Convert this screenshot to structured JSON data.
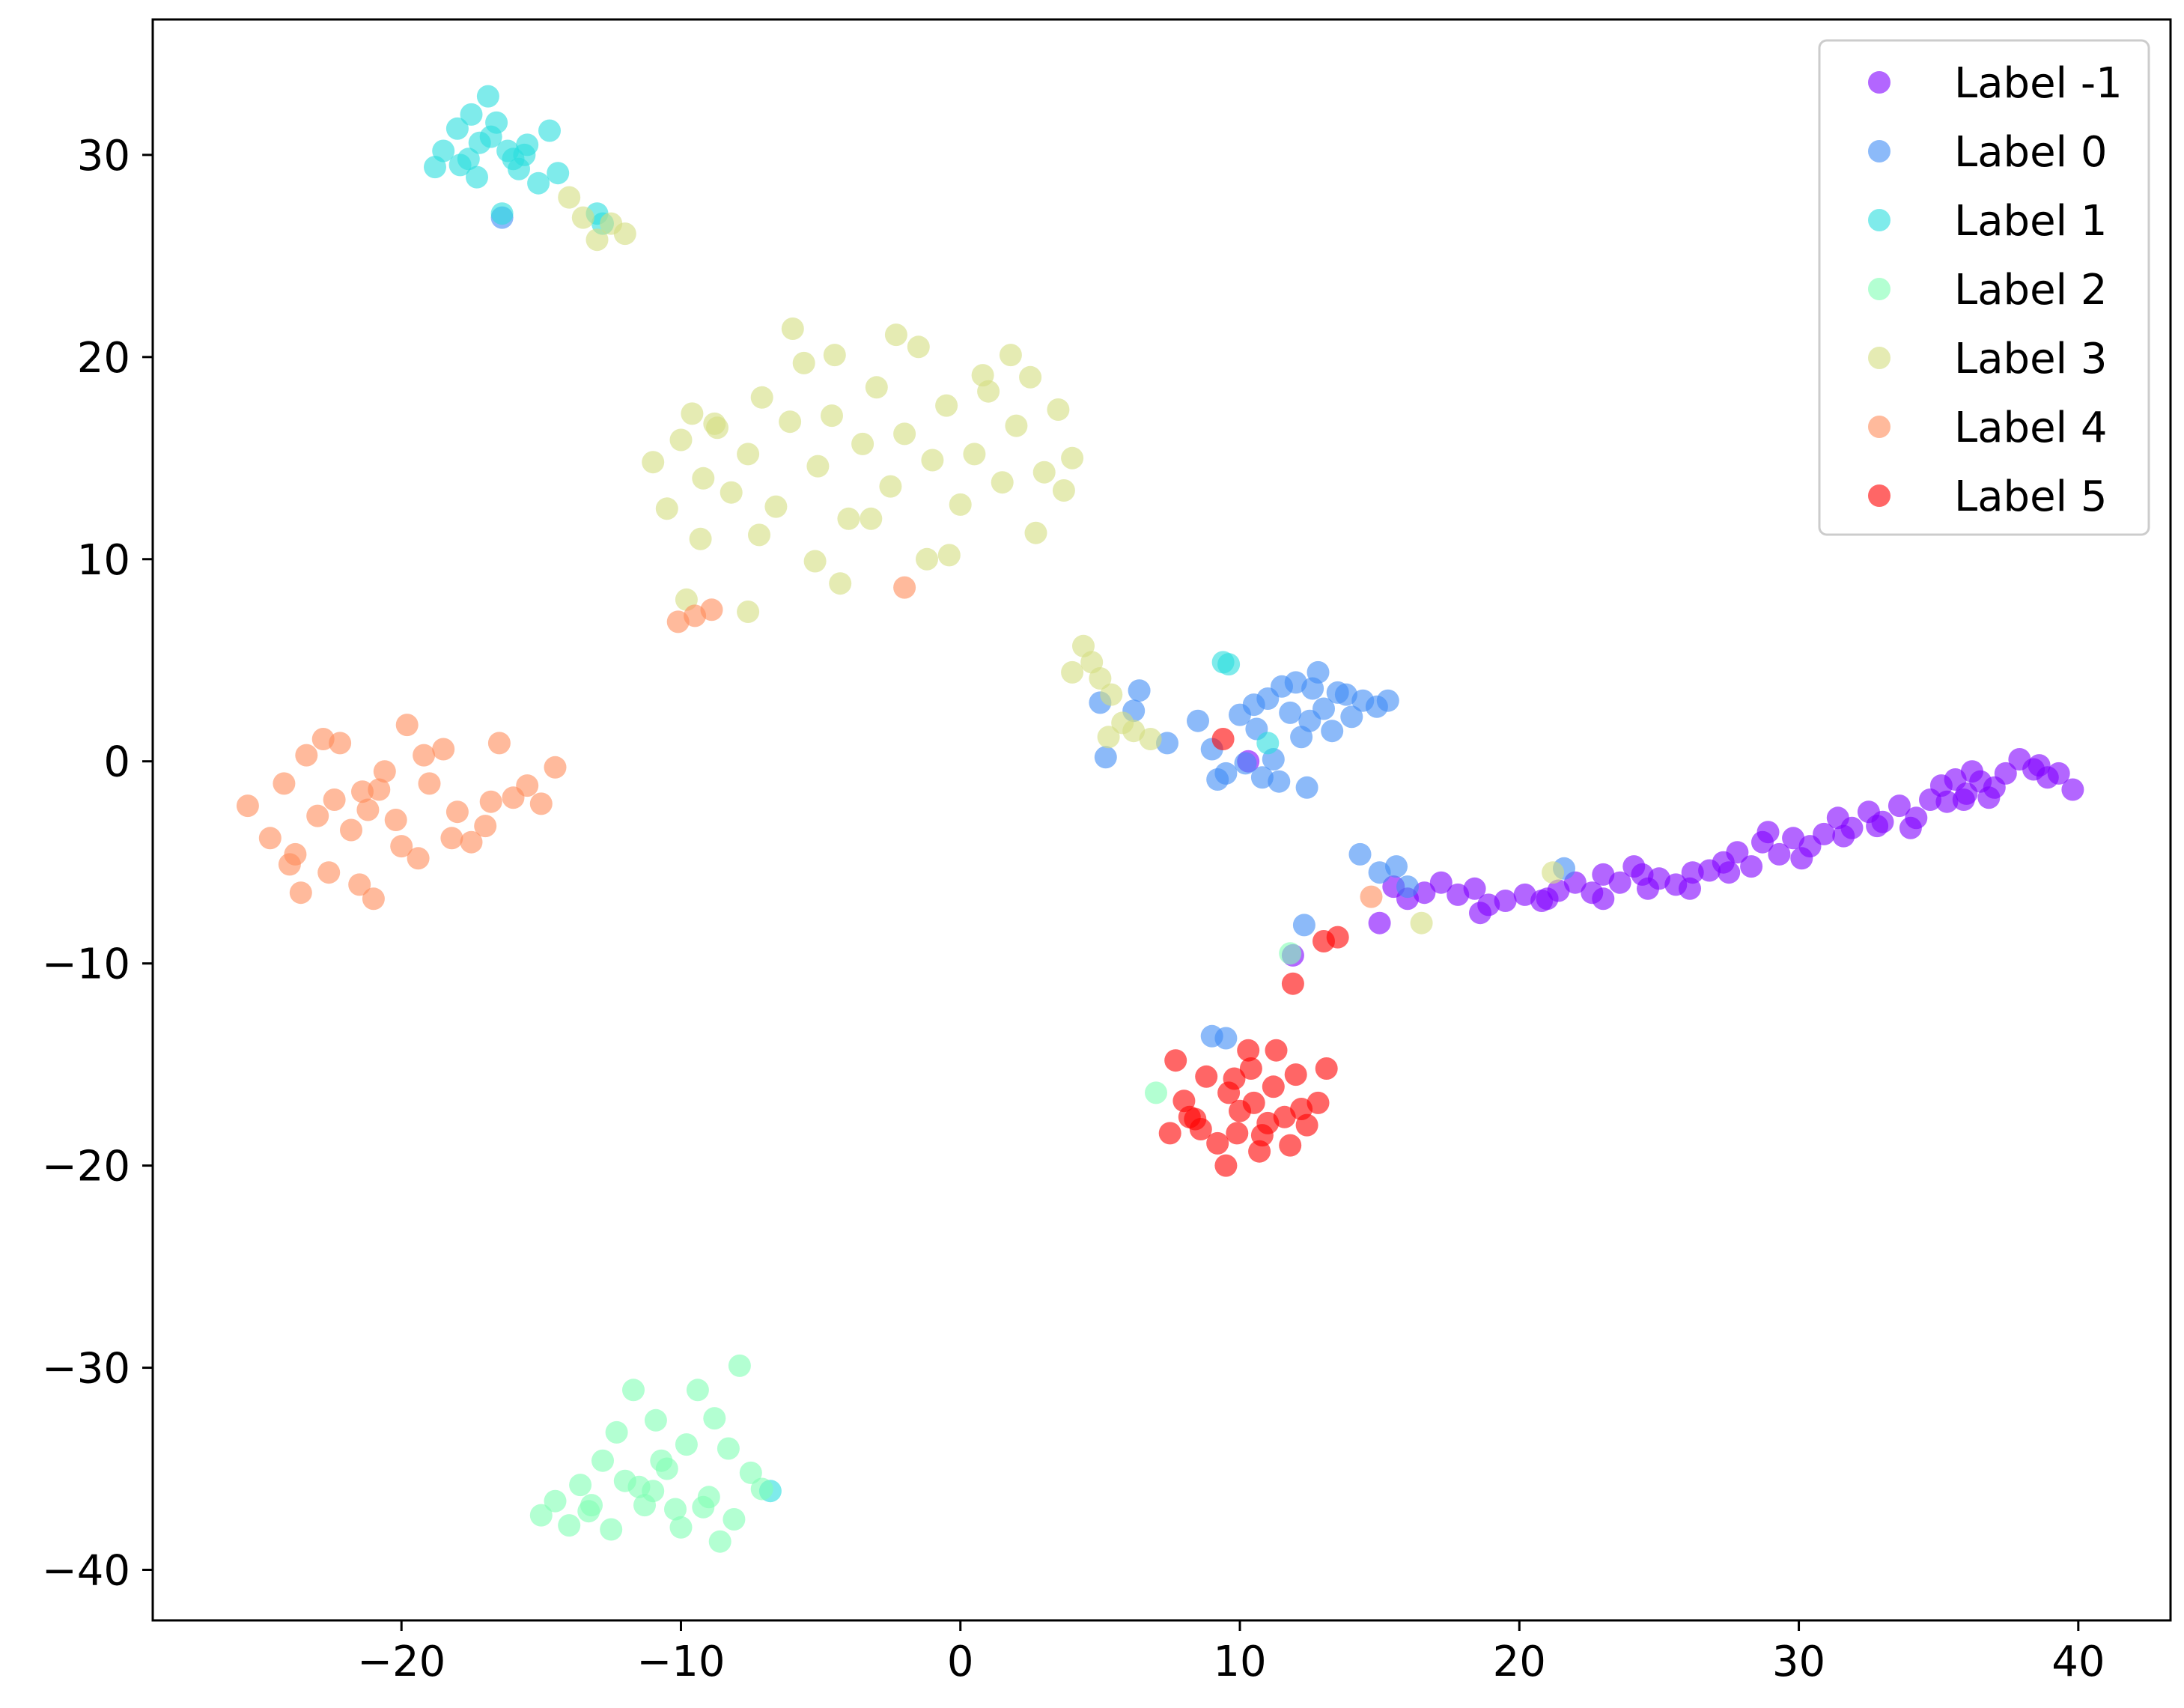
{
  "chart_data": {
    "type": "scatter",
    "title": "",
    "xlabel": "",
    "ylabel": "",
    "xlim": [
      -28.9,
      43.3
    ],
    "ylim": [
      -42.5,
      36.7
    ],
    "grid": false,
    "legend_placement": "top-right",
    "x_ticks": [
      -20,
      -10,
      0,
      10,
      20,
      30,
      40
    ],
    "y_ticks": [
      -40,
      -30,
      -20,
      -10,
      0,
      10,
      20,
      30
    ],
    "x_tick_labels": [
      "−20",
      "−10",
      "0",
      "10",
      "20",
      "30",
      "40"
    ],
    "y_tick_labels": [
      "−40",
      "−30",
      "−20",
      "−10",
      "0",
      "10",
      "20",
      "30"
    ],
    "series": [
      {
        "name": "Label -1",
        "color": "#8000ff",
        "points": [
          [
            15.5,
            -6.2
          ],
          [
            16.0,
            -6.8
          ],
          [
            16.6,
            -6.5
          ],
          [
            17.2,
            -6.0
          ],
          [
            17.8,
            -6.6
          ],
          [
            18.4,
            -6.3
          ],
          [
            18.9,
            -7.1
          ],
          [
            19.5,
            -6.9
          ],
          [
            20.2,
            -6.6
          ],
          [
            20.8,
            -6.9
          ],
          [
            21.4,
            -6.4
          ],
          [
            22.0,
            -6.0
          ],
          [
            22.6,
            -6.5
          ],
          [
            23.0,
            -5.6
          ],
          [
            23.6,
            -6.0
          ],
          [
            24.1,
            -5.2
          ],
          [
            24.6,
            -6.3
          ],
          [
            25.0,
            -5.8
          ],
          [
            25.6,
            -6.1
          ],
          [
            26.2,
            -5.5
          ],
          [
            26.8,
            -5.4
          ],
          [
            27.3,
            -5.0
          ],
          [
            27.8,
            -4.5
          ],
          [
            28.3,
            -5.2
          ],
          [
            28.7,
            -4.0
          ],
          [
            29.3,
            -4.6
          ],
          [
            29.8,
            -3.8
          ],
          [
            30.4,
            -4.2
          ],
          [
            30.9,
            -3.6
          ],
          [
            31.4,
            -2.8
          ],
          [
            31.9,
            -3.3
          ],
          [
            32.5,
            -2.5
          ],
          [
            33.0,
            -3.0
          ],
          [
            33.6,
            -2.2
          ],
          [
            34.2,
            -2.8
          ],
          [
            34.7,
            -1.9
          ],
          [
            35.1,
            -1.2
          ],
          [
            35.6,
            -0.9
          ],
          [
            36.0,
            -1.6
          ],
          [
            36.5,
            -1.0
          ],
          [
            37.0,
            -1.3
          ],
          [
            37.4,
            -0.6
          ],
          [
            37.9,
            0.1
          ],
          [
            38.4,
            -0.4
          ],
          [
            38.9,
            -0.8
          ],
          [
            39.3,
            -0.6
          ],
          [
            39.8,
            -1.4
          ],
          [
            35.3,
            -2.0
          ],
          [
            36.2,
            -0.5
          ],
          [
            15.0,
            -8.0
          ],
          [
            18.6,
            -7.5
          ],
          [
            11.9,
            -9.6
          ],
          [
            10.3,
            0.0
          ],
          [
            21.0,
            -6.8
          ],
          [
            23.0,
            -6.8
          ],
          [
            24.4,
            -5.6
          ],
          [
            26.1,
            -6.3
          ],
          [
            27.5,
            -5.5
          ],
          [
            28.9,
            -3.5
          ],
          [
            30.1,
            -4.8
          ],
          [
            31.6,
            -3.7
          ],
          [
            32.8,
            -3.2
          ],
          [
            34.0,
            -3.3
          ],
          [
            35.9,
            -1.9
          ],
          [
            36.8,
            -1.8
          ],
          [
            38.6,
            -0.2
          ]
        ]
      },
      {
        "name": "Label 0",
        "color": "#3f8cf5",
        "points": [
          [
            -16.4,
            26.9
          ],
          [
            8.5,
            2.0
          ],
          [
            9.0,
            0.6
          ],
          [
            9.5,
            -0.6
          ],
          [
            10.0,
            2.3
          ],
          [
            10.6,
            1.6
          ],
          [
            11.0,
            3.1
          ],
          [
            11.4,
            -1.0
          ],
          [
            11.8,
            2.4
          ],
          [
            12.2,
            1.2
          ],
          [
            12.6,
            3.6
          ],
          [
            13.0,
            2.6
          ],
          [
            13.5,
            3.4
          ],
          [
            14.0,
            2.2
          ],
          [
            14.4,
            3.0
          ],
          [
            14.9,
            2.7
          ],
          [
            15.3,
            3.0
          ],
          [
            12.0,
            3.9
          ],
          [
            12.8,
            4.4
          ],
          [
            11.2,
            0.1
          ],
          [
            10.2,
            -0.1
          ],
          [
            12.4,
            -1.3
          ],
          [
            13.3,
            1.5
          ],
          [
            9.2,
            -0.9
          ],
          [
            10.8,
            -0.8
          ],
          [
            7.4,
            0.9
          ],
          [
            5.2,
            0.2
          ],
          [
            6.2,
            2.5
          ],
          [
            6.4,
            3.5
          ],
          [
            5.0,
            2.9
          ],
          [
            14.3,
            -4.6
          ],
          [
            15.0,
            -5.5
          ],
          [
            15.6,
            -5.2
          ],
          [
            16.0,
            -6.2
          ],
          [
            12.3,
            -8.1
          ],
          [
            9.0,
            -13.6
          ],
          [
            9.5,
            -13.7
          ],
          [
            21.6,
            -5.3
          ],
          [
            11.5,
            3.7
          ],
          [
            13.8,
            3.3
          ],
          [
            12.5,
            2.0
          ],
          [
            10.5,
            2.8
          ]
        ]
      },
      {
        "name": "Label 1",
        "color": "#2adddd",
        "points": [
          [
            -18.5,
            30.2
          ],
          [
            -18.0,
            31.3
          ],
          [
            -17.6,
            29.8
          ],
          [
            -17.2,
            30.6
          ],
          [
            -16.9,
            32.9
          ],
          [
            -16.6,
            31.6
          ],
          [
            -16.2,
            30.2
          ],
          [
            -15.8,
            29.3
          ],
          [
            -15.5,
            30.5
          ],
          [
            -15.1,
            28.6
          ],
          [
            -14.7,
            31.2
          ],
          [
            -14.4,
            29.1
          ],
          [
            -17.3,
            28.9
          ],
          [
            -16.0,
            29.8
          ],
          [
            -17.5,
            32.0
          ],
          [
            -16.4,
            27.1
          ],
          [
            -18.8,
            29.4
          ],
          [
            -15.6,
            30.0
          ],
          [
            -16.8,
            30.9
          ],
          [
            -17.9,
            29.5
          ],
          [
            -13.0,
            27.1
          ],
          [
            -12.8,
            26.6
          ],
          [
            9.4,
            4.9
          ],
          [
            9.6,
            4.8
          ],
          [
            11.0,
            0.9
          ],
          [
            -6.8,
            -36.1
          ]
        ]
      },
      {
        "name": "Label 2",
        "color": "#80ffb4",
        "points": [
          [
            -15.0,
            -37.3
          ],
          [
            -14.5,
            -36.6
          ],
          [
            -14.0,
            -37.8
          ],
          [
            -13.6,
            -35.8
          ],
          [
            -13.2,
            -36.8
          ],
          [
            -12.8,
            -34.6
          ],
          [
            -12.3,
            -33.2
          ],
          [
            -12.0,
            -35.6
          ],
          [
            -11.7,
            -31.1
          ],
          [
            -11.3,
            -36.8
          ],
          [
            -10.9,
            -32.6
          ],
          [
            -10.5,
            -35.0
          ],
          [
            -10.2,
            -37.0
          ],
          [
            -9.8,
            -33.8
          ],
          [
            -9.4,
            -31.1
          ],
          [
            -9.0,
            -36.4
          ],
          [
            -8.6,
            -38.6
          ],
          [
            -8.3,
            -34.0
          ],
          [
            -7.9,
            -29.9
          ],
          [
            -7.5,
            -35.2
          ],
          [
            -7.1,
            -36.0
          ],
          [
            -11.0,
            -36.1
          ],
          [
            -12.5,
            -38.0
          ],
          [
            -10.0,
            -37.9
          ],
          [
            -9.2,
            -36.9
          ],
          [
            -8.8,
            -32.5
          ],
          [
            -11.5,
            -35.9
          ],
          [
            -13.3,
            -37.1
          ],
          [
            -8.1,
            -37.5
          ],
          [
            -10.7,
            -34.6
          ],
          [
            7.0,
            -16.4
          ],
          [
            11.8,
            -9.5
          ]
        ]
      },
      {
        "name": "Label 3",
        "color": "#d4dd80",
        "points": [
          [
            -11.0,
            14.8
          ],
          [
            -10.5,
            12.5
          ],
          [
            -10.0,
            15.9
          ],
          [
            -9.6,
            17.2
          ],
          [
            -9.2,
            14.0
          ],
          [
            -8.7,
            16.5
          ],
          [
            -8.2,
            13.3
          ],
          [
            -7.6,
            15.2
          ],
          [
            -7.1,
            18.0
          ],
          [
            -6.6,
            12.6
          ],
          [
            -6.1,
            16.8
          ],
          [
            -5.6,
            19.7
          ],
          [
            -5.1,
            14.6
          ],
          [
            -4.6,
            17.1
          ],
          [
            -4.0,
            12.0
          ],
          [
            -3.5,
            15.7
          ],
          [
            -3.0,
            18.5
          ],
          [
            -2.5,
            13.6
          ],
          [
            -2.0,
            16.2
          ],
          [
            -1.5,
            20.5
          ],
          [
            -1.0,
            14.9
          ],
          [
            -0.5,
            17.6
          ],
          [
            0.0,
            12.7
          ],
          [
            0.5,
            15.2
          ],
          [
            1.0,
            18.3
          ],
          [
            1.5,
            13.8
          ],
          [
            2.0,
            16.6
          ],
          [
            2.5,
            19.0
          ],
          [
            3.0,
            14.3
          ],
          [
            3.5,
            17.4
          ],
          [
            4.0,
            15.0
          ],
          [
            3.7,
            13.4
          ],
          [
            -6.0,
            21.4
          ],
          [
            -4.5,
            20.1
          ],
          [
            -2.3,
            21.1
          ],
          [
            -0.4,
            10.2
          ],
          [
            -4.3,
            8.8
          ],
          [
            -7.2,
            11.2
          ],
          [
            -5.2,
            9.9
          ],
          [
            -9.3,
            11.0
          ],
          [
            -7.6,
            7.4
          ],
          [
            -9.8,
            8.0
          ],
          [
            1.8,
            20.1
          ],
          [
            2.7,
            11.3
          ],
          [
            -1.2,
            10.0
          ],
          [
            -3.2,
            12.0
          ],
          [
            0.8,
            19.1
          ],
          [
            -8.8,
            16.7
          ],
          [
            4.4,
            5.7
          ],
          [
            4.7,
            4.9
          ],
          [
            5.0,
            4.1
          ],
          [
            5.4,
            3.3
          ],
          [
            5.8,
            1.9
          ],
          [
            6.2,
            1.5
          ],
          [
            4.0,
            4.4
          ],
          [
            5.3,
            1.2
          ],
          [
            6.8,
            1.1
          ],
          [
            -14.0,
            27.9
          ],
          [
            -13.5,
            26.9
          ],
          [
            -12.5,
            26.6
          ],
          [
            -12.0,
            26.1
          ],
          [
            -13.0,
            25.8
          ],
          [
            21.2,
            -5.5
          ],
          [
            16.5,
            -8.0
          ]
        ]
      },
      {
        "name": "Label 4",
        "color": "#ff8c5a",
        "points": [
          [
            -25.5,
            -2.2
          ],
          [
            -24.7,
            -3.8
          ],
          [
            -24.2,
            -1.1
          ],
          [
            -23.8,
            -4.6
          ],
          [
            -23.4,
            0.3
          ],
          [
            -23.0,
            -2.7
          ],
          [
            -22.6,
            -5.5
          ],
          [
            -22.2,
            0.9
          ],
          [
            -21.8,
            -3.4
          ],
          [
            -21.4,
            -1.5
          ],
          [
            -21.0,
            -6.8
          ],
          [
            -20.6,
            -0.5
          ],
          [
            -20.2,
            -2.9
          ],
          [
            -19.8,
            1.8
          ],
          [
            -19.4,
            -4.8
          ],
          [
            -19.0,
            -1.1
          ],
          [
            -18.5,
            0.6
          ],
          [
            -18.0,
            -2.5
          ],
          [
            -17.5,
            -4.0
          ],
          [
            -17.0,
            -3.2
          ],
          [
            -16.5,
            0.9
          ],
          [
            -16.0,
            -1.8
          ],
          [
            -15.5,
            -1.2
          ],
          [
            -15.0,
            -2.1
          ],
          [
            -14.5,
            -0.3
          ],
          [
            -23.6,
            -6.5
          ],
          [
            -21.5,
            -6.1
          ],
          [
            -20.0,
            -4.2
          ],
          [
            -22.8,
            1.1
          ],
          [
            -19.2,
            0.3
          ],
          [
            -18.2,
            -3.8
          ],
          [
            -16.8,
            -2.0
          ],
          [
            -24.0,
            -5.1
          ],
          [
            -20.8,
            -1.4
          ],
          [
            -21.2,
            -2.4
          ],
          [
            -22.4,
            -1.9
          ],
          [
            -9.5,
            7.2
          ],
          [
            -10.1,
            6.9
          ],
          [
            -8.9,
            7.5
          ],
          [
            -2.0,
            8.6
          ],
          [
            14.7,
            -6.7
          ]
        ]
      },
      {
        "name": "Label 5",
        "color": "#ff0000",
        "points": [
          [
            7.5,
            -18.4
          ],
          [
            8.0,
            -16.8
          ],
          [
            8.4,
            -17.7
          ],
          [
            8.8,
            -15.6
          ],
          [
            9.2,
            -18.9
          ],
          [
            9.6,
            -16.4
          ],
          [
            10.0,
            -17.3
          ],
          [
            10.4,
            -15.2
          ],
          [
            10.8,
            -18.5
          ],
          [
            11.2,
            -16.1
          ],
          [
            11.6,
            -17.6
          ],
          [
            12.0,
            -15.5
          ],
          [
            12.4,
            -18.0
          ],
          [
            12.8,
            -16.9
          ],
          [
            13.1,
            -15.2
          ],
          [
            10.3,
            -14.3
          ],
          [
            11.3,
            -14.3
          ],
          [
            9.5,
            -20.0
          ],
          [
            10.7,
            -19.3
          ],
          [
            11.8,
            -19.0
          ],
          [
            8.6,
            -18.2
          ],
          [
            9.9,
            -18.4
          ],
          [
            10.5,
            -16.9
          ],
          [
            12.2,
            -17.2
          ],
          [
            7.7,
            -14.8
          ],
          [
            11.0,
            -17.9
          ],
          [
            9.8,
            -15.7
          ],
          [
            8.2,
            -17.6
          ],
          [
            11.9,
            -11.0
          ],
          [
            13.0,
            -8.9
          ],
          [
            13.5,
            -8.7
          ],
          [
            9.4,
            1.1
          ]
        ]
      }
    ]
  }
}
